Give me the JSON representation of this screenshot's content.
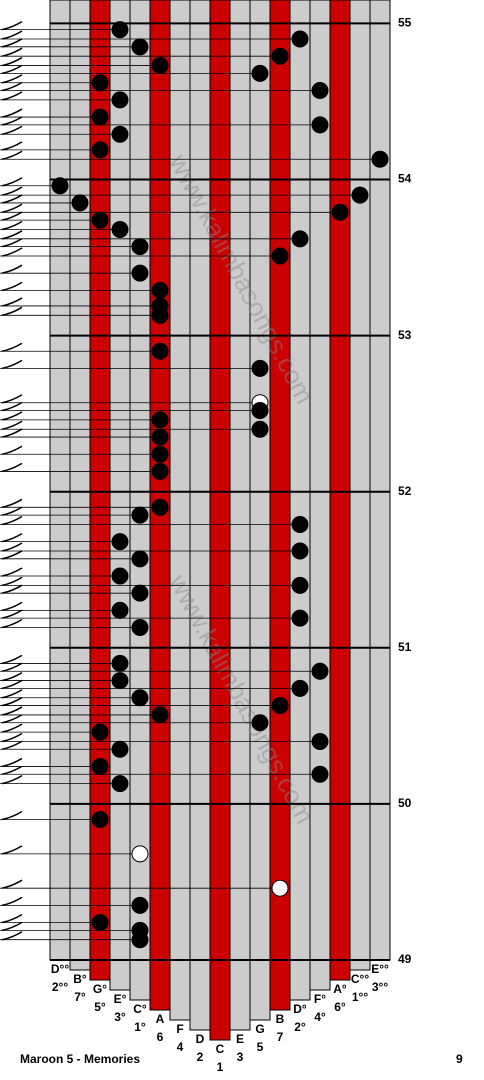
{
  "chart_data": {
    "type": "kalimba-tab",
    "title": "Maroon 5 - Memories",
    "page_number": "9",
    "watermark": "www.kalimbasongs.com",
    "tines": [
      {
        "note": "D°°",
        "number": "2°°",
        "color": "#cccccc"
      },
      {
        "note": "B°",
        "number": "7°",
        "color": "#cccccc"
      },
      {
        "note": "G°",
        "number": "5°",
        "color": "#cc0000"
      },
      {
        "note": "E°",
        "number": "3°",
        "color": "#cccccc"
      },
      {
        "note": "C°",
        "number": "1°",
        "color": "#cccccc"
      },
      {
        "note": "A",
        "number": "6",
        "color": "#cc0000"
      },
      {
        "note": "F",
        "number": "4",
        "color": "#cccccc"
      },
      {
        "note": "D",
        "number": "2",
        "color": "#cccccc"
      },
      {
        "note": "C",
        "number": "1",
        "color": "#cc0000"
      },
      {
        "note": "E",
        "number": "3",
        "color": "#cccccc"
      },
      {
        "note": "G",
        "number": "5",
        "color": "#cccccc"
      },
      {
        "note": "B",
        "number": "7",
        "color": "#cc0000"
      },
      {
        "note": "D°",
        "number": "2°",
        "color": "#cccccc"
      },
      {
        "note": "F°",
        "number": "4°",
        "color": "#cccccc"
      },
      {
        "note": "A°",
        "number": "6°",
        "color": "#cc0000"
      },
      {
        "note": "C°°",
        "number": "1°°",
        "color": "#cccccc"
      },
      {
        "note": "E°°",
        "number": "3°°",
        "color": "#cccccc"
      }
    ],
    "ylim": [
      49,
      55.15
    ],
    "measures": [
      55,
      54,
      53,
      52,
      51,
      50,
      49
    ],
    "notes": [
      {
        "tine": 3,
        "time": 54.96
      },
      {
        "tine": 4,
        "time": 54.85
      },
      {
        "tine": 5,
        "time": 54.73
      },
      {
        "tine": 12,
        "time": 54.9
      },
      {
        "tine": 11,
        "time": 54.79
      },
      {
        "tine": 10,
        "time": 54.68
      },
      {
        "tine": 2,
        "time": 54.62
      },
      {
        "tine": 13,
        "time": 54.57
      },
      {
        "tine": 3,
        "time": 54.51
      },
      {
        "tine": 2,
        "time": 54.4
      },
      {
        "tine": 13,
        "time": 54.35
      },
      {
        "tine": 3,
        "time": 54.29
      },
      {
        "tine": 2,
        "time": 54.19
      },
      {
        "tine": 16,
        "time": 54.13
      },
      {
        "tine": 0,
        "time": 53.96
      },
      {
        "tine": 15,
        "time": 53.9
      },
      {
        "tine": 1,
        "time": 53.85
      },
      {
        "tine": 14,
        "time": 53.79
      },
      {
        "tine": 2,
        "time": 53.74
      },
      {
        "tine": 3,
        "time": 53.68
      },
      {
        "tine": 12,
        "time": 53.62
      },
      {
        "tine": 4,
        "time": 53.57
      },
      {
        "tine": 11,
        "time": 53.51
      },
      {
        "tine": 4,
        "time": 53.4
      },
      {
        "tine": 5,
        "time": 53.29
      },
      {
        "tine": 5,
        "time": 53.19
      },
      {
        "tine": 5,
        "time": 53.13
      },
      {
        "tine": 5,
        "time": 52.9
      },
      {
        "tine": 10,
        "time": 52.79
      },
      {
        "tine": 10,
        "time": 52.57,
        "open": true
      },
      {
        "tine": 10,
        "time": 52.52
      },
      {
        "tine": 10,
        "time": 52.4
      },
      {
        "tine": 5,
        "time": 52.46
      },
      {
        "tine": 5,
        "time": 52.35
      },
      {
        "tine": 5,
        "time": 52.24
      },
      {
        "tine": 5,
        "time": 52.13
      },
      {
        "tine": 5,
        "time": 51.9
      },
      {
        "tine": 4,
        "time": 51.85
      },
      {
        "tine": 12,
        "time": 51.79
      },
      {
        "tine": 3,
        "time": 51.68
      },
      {
        "tine": 12,
        "time": 51.62
      },
      {
        "tine": 4,
        "time": 51.57
      },
      {
        "tine": 3,
        "time": 51.46
      },
      {
        "tine": 12,
        "time": 51.4
      },
      {
        "tine": 4,
        "time": 51.35
      },
      {
        "tine": 3,
        "time": 51.24
      },
      {
        "tine": 12,
        "time": 51.19
      },
      {
        "tine": 4,
        "time": 51.13
      },
      {
        "tine": 3,
        "time": 50.9
      },
      {
        "tine": 13,
        "time": 50.85
      },
      {
        "tine": 3,
        "time": 50.79
      },
      {
        "tine": 12,
        "time": 50.74
      },
      {
        "tine": 4,
        "time": 50.68
      },
      {
        "tine": 11,
        "time": 50.63
      },
      {
        "tine": 5,
        "time": 50.57
      },
      {
        "tine": 10,
        "time": 50.52
      },
      {
        "tine": 2,
        "time": 50.46
      },
      {
        "tine": 13,
        "time": 50.4
      },
      {
        "tine": 3,
        "time": 50.35
      },
      {
        "tine": 2,
        "time": 50.24
      },
      {
        "tine": 13,
        "time": 50.19
      },
      {
        "tine": 3,
        "time": 50.13
      },
      {
        "tine": 2,
        "time": 49.9
      },
      {
        "tine": 4,
        "time": 49.68,
        "open": true
      },
      {
        "tine": 11,
        "time": 49.46,
        "open": true
      },
      {
        "tine": 4,
        "time": 49.35
      },
      {
        "tine": 2,
        "time": 49.24
      },
      {
        "tine": 4,
        "time": 49.19
      },
      {
        "tine": 4,
        "time": 49.13
      }
    ]
  }
}
